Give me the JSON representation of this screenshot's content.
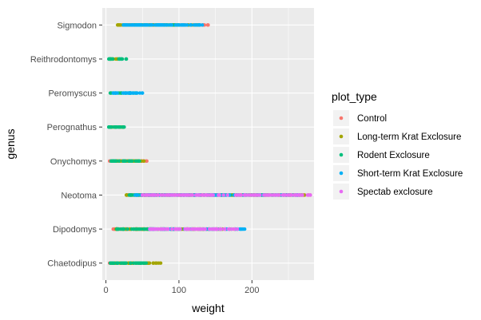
{
  "chart_data": {
    "type": "scatter",
    "title": "",
    "xlabel": "weight",
    "ylabel": "genus",
    "xlim": [
      -5,
      285
    ],
    "x_ticks": [
      0,
      100,
      200
    ],
    "x_tick_labels": [
      "0",
      "100",
      "200"
    ],
    "categories": [
      "Chaetodipus",
      "Dipodomys",
      "Neotoma",
      "Onychomys",
      "Perognathus",
      "Peromyscus",
      "Reithrodontomys",
      "Sigmodon"
    ],
    "grid": true,
    "legend": {
      "title": "plot_type",
      "position": "right"
    },
    "series": [
      {
        "name": "Control",
        "color": "#F8766D",
        "ranges": [
          {
            "genus": "Chaetodipus",
            "min": 5,
            "max": 47
          },
          {
            "genus": "Dipodomys",
            "min": 10,
            "max": 178
          },
          {
            "genus": "Neotoma",
            "min": 30,
            "max": 280
          },
          {
            "genus": "Onychomys",
            "min": 5,
            "max": 56
          },
          {
            "genus": "Sigmodon",
            "min": 30,
            "max": 140
          }
        ]
      },
      {
        "name": "Long-term Krat Exclosure",
        "color": "#A3A500",
        "ranges": [
          {
            "genus": "Chaetodipus",
            "min": 8,
            "max": 75
          },
          {
            "genus": "Dipodomys",
            "min": 14,
            "max": 160
          },
          {
            "genus": "Neotoma",
            "min": 28,
            "max": 272
          },
          {
            "genus": "Onychomys",
            "min": 10,
            "max": 52
          },
          {
            "genus": "Perognathus",
            "min": 6,
            "max": 24
          },
          {
            "genus": "Reithrodontomys",
            "min": 6,
            "max": 16
          },
          {
            "genus": "Sigmodon",
            "min": 16,
            "max": 128
          }
        ]
      },
      {
        "name": "Rodent Exclosure",
        "color": "#00BF7D",
        "ranges": [
          {
            "genus": "Chaetodipus",
            "min": 6,
            "max": 55
          },
          {
            "genus": "Dipodomys",
            "min": 15,
            "max": 65
          },
          {
            "genus": "Neotoma",
            "min": 32,
            "max": 268
          },
          {
            "genus": "Onychomys",
            "min": 7,
            "max": 46
          },
          {
            "genus": "Perognathus",
            "min": 4,
            "max": 25
          },
          {
            "genus": "Peromyscus",
            "min": 6,
            "max": 42
          },
          {
            "genus": "Reithrodontomys",
            "min": 4,
            "max": 28
          },
          {
            "genus": "Sigmodon",
            "min": 40,
            "max": 100
          }
        ]
      },
      {
        "name": "Short-term Krat Exclosure",
        "color": "#00B0F6",
        "ranges": [
          {
            "genus": "Dipodomys",
            "min": 60,
            "max": 190
          },
          {
            "genus": "Neotoma",
            "min": 40,
            "max": 265
          },
          {
            "genus": "Peromyscus",
            "min": 10,
            "max": 50
          },
          {
            "genus": "Sigmodon",
            "min": 24,
            "max": 132
          }
        ]
      },
      {
        "name": "Spectab exclosure",
        "color": "#E76BF3",
        "ranges": [
          {
            "genus": "Dipodomys",
            "min": 60,
            "max": 180
          },
          {
            "genus": "Neotoma",
            "min": 50,
            "max": 280
          }
        ]
      }
    ]
  }
}
